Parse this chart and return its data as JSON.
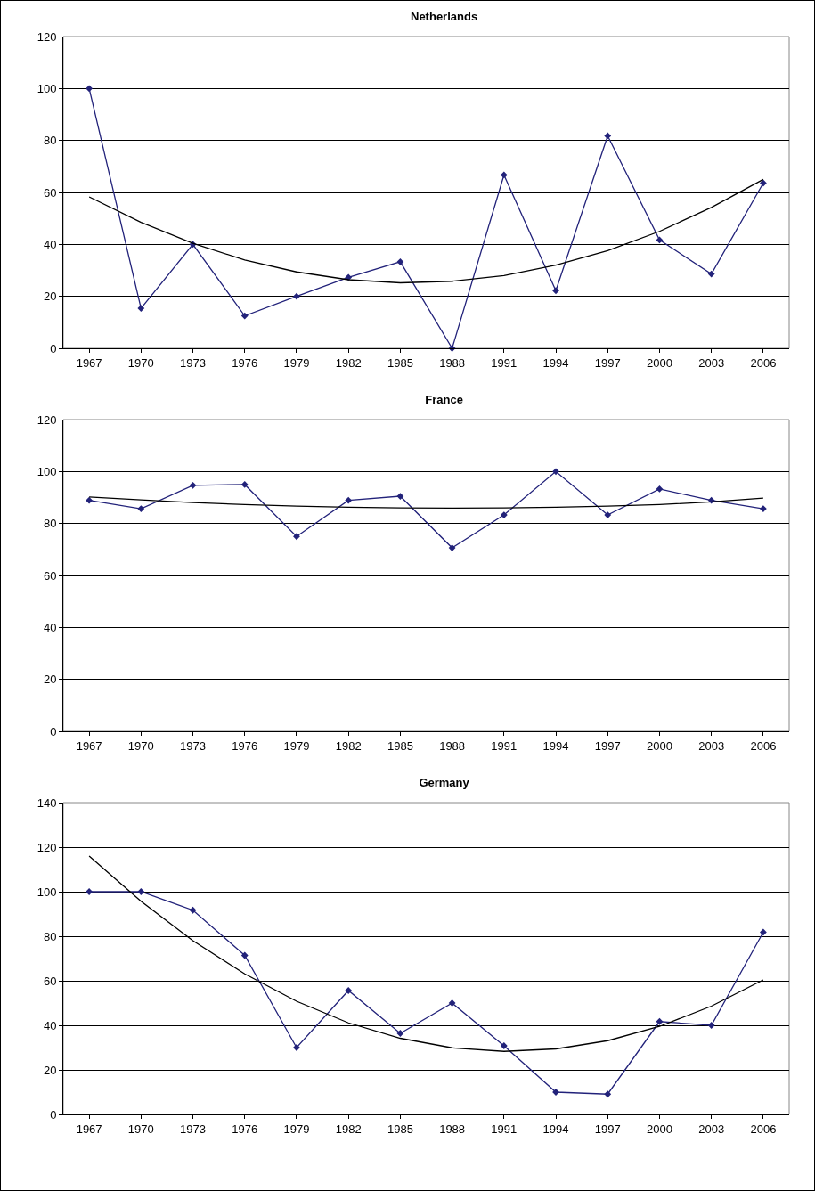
{
  "chart_data": [
    {
      "type": "line",
      "title": "Netherlands",
      "categories": [
        "1967",
        "1970",
        "1973",
        "1976",
        "1979",
        "1982",
        "1985",
        "1988",
        "1991",
        "1994",
        "1997",
        "2000",
        "2003",
        "2006"
      ],
      "ylim": [
        0,
        120
      ],
      "yticks": [
        0,
        20,
        40,
        60,
        80,
        100,
        120
      ],
      "grid": "y",
      "series": [
        {
          "color": "#22227a",
          "marker": "diamond",
          "values": [
            100,
            15.4,
            40,
            12.5,
            20,
            27.3,
            33.3,
            0,
            66.7,
            22.2,
            81.8,
            41.7,
            28.6,
            63.6
          ]
        },
        {
          "color": "#000000",
          "marker": "none",
          "values": [
            58.3,
            48.5,
            40.4,
            34,
            29.4,
            26.4,
            25.2,
            25.8,
            28,
            32,
            37.6,
            45,
            54.2,
            65
          ]
        }
      ]
    },
    {
      "type": "line",
      "title": "France",
      "categories": [
        "1967",
        "1970",
        "1973",
        "1976",
        "1979",
        "1982",
        "1985",
        "1988",
        "1991",
        "1994",
        "1997",
        "2000",
        "2003",
        "2006"
      ],
      "ylim": [
        0,
        120
      ],
      "yticks": [
        0,
        20,
        40,
        60,
        80,
        100,
        120
      ],
      "grid": "y",
      "series": [
        {
          "color": "#22227a",
          "marker": "diamond",
          "values": [
            88.9,
            85.7,
            94.7,
            95,
            75,
            88.9,
            90.5,
            70.6,
            83.3,
            100,
            83.3,
            93.3,
            88.9,
            85.7
          ]
        },
        {
          "color": "#000000",
          "marker": "none",
          "values": [
            90.2,
            89.1,
            88.1,
            87.3,
            86.7,
            86.3,
            86,
            85.9,
            86,
            86.3,
            86.7,
            87.3,
            88.3,
            89.8
          ]
        }
      ]
    },
    {
      "type": "line",
      "title": "Germany",
      "categories": [
        "1967",
        "1970",
        "1973",
        "1976",
        "1979",
        "1982",
        "1985",
        "1988",
        "1991",
        "1994",
        "1997",
        "2000",
        "2003",
        "2006"
      ],
      "ylim": [
        0,
        140
      ],
      "yticks": [
        0,
        20,
        40,
        60,
        80,
        100,
        120,
        140
      ],
      "grid": "y",
      "series": [
        {
          "color": "#22227a",
          "marker": "diamond",
          "values": [
            100,
            100,
            91.7,
            71.4,
            30,
            55.6,
            36.4,
            50,
            30.8,
            10,
            9.1,
            41.7,
            40,
            81.8
          ]
        },
        {
          "color": "#000000",
          "marker": "none",
          "values": [
            116,
            95.7,
            78,
            63.1,
            50.8,
            41.1,
            34.2,
            29.9,
            28.3,
            29.4,
            33.1,
            39.5,
            48.6,
            60.4
          ]
        }
      ]
    }
  ]
}
